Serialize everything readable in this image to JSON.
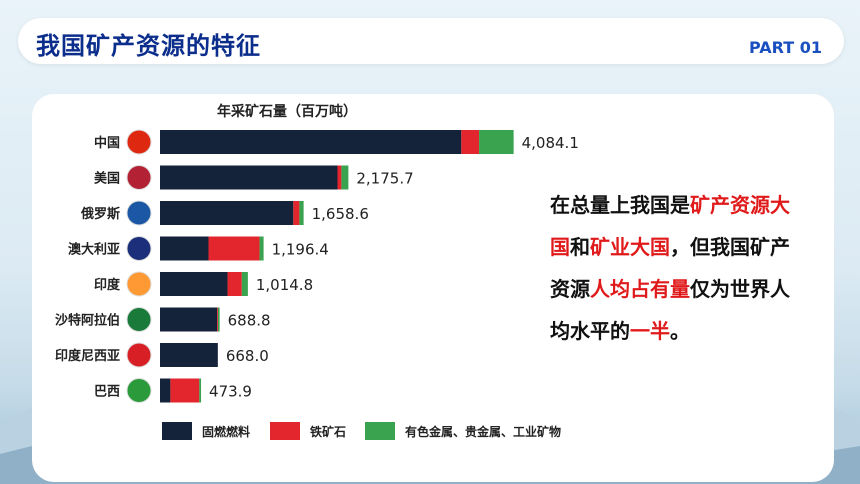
{
  "header": {
    "title": "我国矿产资源的特征",
    "part": "PART 01"
  },
  "chart_data": {
    "type": "bar",
    "orientation": "horizontal",
    "stacked": true,
    "title": "年采矿石量（百万吨）",
    "categories": [
      "中国",
      "美国",
      "俄罗斯",
      "澳大利亚",
      "印度",
      "沙特阿拉伯",
      "印度尼西亚",
      "巴西"
    ],
    "totals": [
      "4,084.1",
      "2,175.7",
      "1,658.6",
      "1,196.4",
      "1,014.8",
      "688.8",
      "668.0",
      "473.9"
    ],
    "series": [
      {
        "name": "固燃燃料",
        "color": "#14233a",
        "values": [
          3480,
          2050,
          1540,
          560,
          780,
          660,
          668,
          120
        ]
      },
      {
        "name": "铁矿石",
        "color": "#e3262e",
        "values": [
          205,
          45,
          70,
          590,
          165,
          10,
          0,
          334
        ]
      },
      {
        "name": "有色金属、贵金属、工业矿物",
        "color": "#3aa34f",
        "values": [
          399.1,
          80.7,
          48.6,
          46.4,
          69.8,
          18.8,
          0,
          19.9
        ]
      }
    ],
    "xlim": [
      0,
      4100
    ],
    "legend_position": "bottom"
  },
  "note": {
    "segments": [
      {
        "text": "在总量上我国是",
        "hl": false
      },
      {
        "text": "矿产",
        "hl": true
      },
      {
        "text": "资源大国",
        "hl": true
      },
      {
        "text": "和",
        "hl": false
      },
      {
        "text": "矿业大国",
        "hl": true
      },
      {
        "text": "，",
        "hl": false
      },
      {
        "text": "但我国矿产资源",
        "hl": false
      },
      {
        "text": "人均",
        "hl": true
      },
      {
        "text": "占有量",
        "hl": true
      },
      {
        "text": "仅为世界人均",
        "hl": false
      },
      {
        "text": "水平的",
        "hl": false
      },
      {
        "text": "一半",
        "hl": true
      },
      {
        "text": "。",
        "hl": false
      }
    ]
  },
  "colors": {
    "title": "#0b2d8c",
    "highlight": "#e01a1a"
  }
}
